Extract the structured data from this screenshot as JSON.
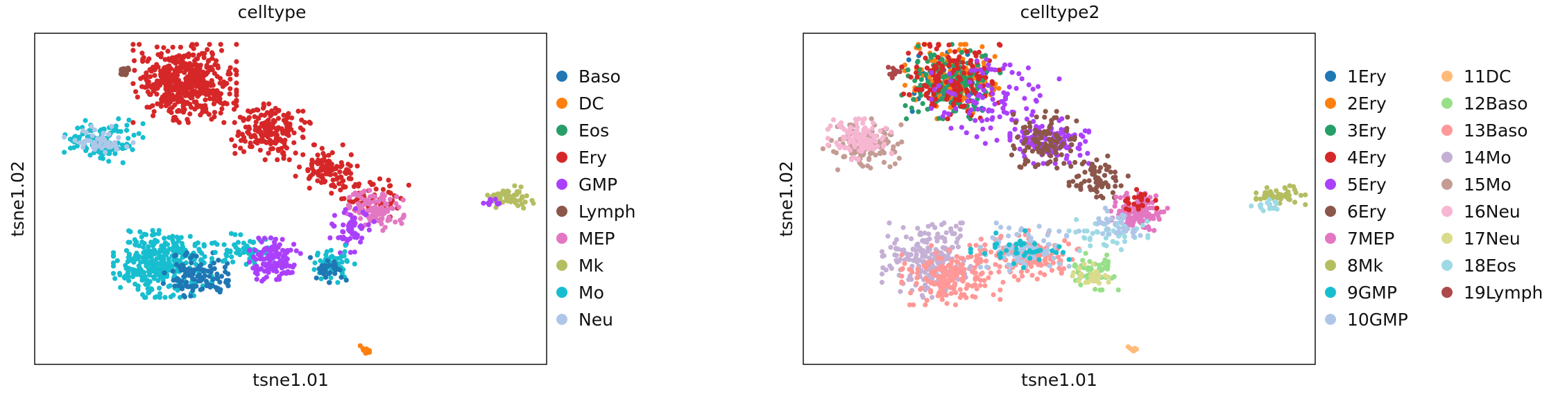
{
  "chart_data": [
    {
      "type": "scatter",
      "title": "celltype",
      "xlabel": "tsne1.01",
      "ylabel": "tsne1.02",
      "xlim": [
        -48,
        56
      ],
      "ylim": [
        -44,
        45
      ],
      "grid": false,
      "ticks": false,
      "legend_position": "right",
      "legend_columns": 1,
      "series": [
        {
          "name": "Baso",
          "color": "#1f77b4"
        },
        {
          "name": "DC",
          "color": "#ff7f0e"
        },
        {
          "name": "Eos",
          "color": "#279e68"
        },
        {
          "name": "Ery",
          "color": "#d62728"
        },
        {
          "name": "GMP",
          "color": "#aa40fc"
        },
        {
          "name": "Lymph",
          "color": "#8c564b"
        },
        {
          "name": "MEP",
          "color": "#e377c2"
        },
        {
          "name": "Mk",
          "color": "#b5bd61"
        },
        {
          "name": "Mo",
          "color": "#17becf"
        },
        {
          "name": "Neu",
          "color": "#aec7e8"
        }
      ],
      "clusters": [
        {
          "series": "Ery",
          "x": [
            -28,
            -7
          ],
          "y": [
            21,
            42
          ],
          "n": 520
        },
        {
          "series": "Ery",
          "x": [
            -8,
            8
          ],
          "y": [
            11,
            26
          ],
          "n": 180
        },
        {
          "series": "Ery",
          "x": [
            5,
            18
          ],
          "y": [
            2,
            15
          ],
          "n": 110
        },
        {
          "series": "Ery",
          "x": [
            14,
            28
          ],
          "y": [
            -5,
            6
          ],
          "n": 60
        },
        {
          "series": "MEP",
          "x": [
            15,
            27
          ],
          "y": [
            -8,
            3
          ],
          "n": 130
        },
        {
          "series": "Mo",
          "x": [
            -42,
            -26
          ],
          "y": [
            10,
            22
          ],
          "n": 120
        },
        {
          "series": "Neu",
          "x": [
            -42,
            -28
          ],
          "y": [
            12,
            20
          ],
          "n": 50
        },
        {
          "series": "Mo",
          "x": [
            -32,
            -12
          ],
          "y": [
            -26,
            -8
          ],
          "n": 340
        },
        {
          "series": "Baso",
          "x": [
            -22,
            -8
          ],
          "y": [
            -26,
            -14
          ],
          "n": 110
        },
        {
          "series": "Mo",
          "x": [
            -12,
            0
          ],
          "y": [
            -18,
            -8
          ],
          "n": 60
        },
        {
          "series": "GMP",
          "x": [
            -5,
            6
          ],
          "y": [
            -22,
            -10
          ],
          "n": 120
        },
        {
          "series": "GMP",
          "x": [
            12,
            21
          ],
          "y": [
            -14,
            -2
          ],
          "n": 60
        },
        {
          "series": "Mo",
          "x": [
            8,
            17
          ],
          "y": [
            -22,
            -12
          ],
          "n": 50
        },
        {
          "series": "Baso",
          "x": [
            8,
            16
          ],
          "y": [
            -22,
            -15
          ],
          "n": 30
        },
        {
          "series": "Mk",
          "x": [
            43,
            54
          ],
          "y": [
            -2,
            4
          ],
          "n": 60
        },
        {
          "series": "GMP",
          "x": [
            43,
            47
          ],
          "y": [
            -2,
            1
          ],
          "n": 10
        },
        {
          "series": "Lymph",
          "x": [
            -31,
            -28
          ],
          "y": [
            33,
            36
          ],
          "n": 15
        },
        {
          "series": "DC",
          "x": [
            18,
            20
          ],
          "y": [
            -41,
            -39
          ],
          "n": 12
        }
      ]
    },
    {
      "type": "scatter",
      "title": "celltype2",
      "xlabel": "tsne1.01",
      "ylabel": "tsne1.02",
      "xlim": [
        -48,
        56
      ],
      "ylim": [
        -44,
        45
      ],
      "grid": false,
      "ticks": false,
      "legend_position": "right",
      "legend_columns": 2,
      "series": [
        {
          "name": "1Ery",
          "color": "#1f77b4"
        },
        {
          "name": "2Ery",
          "color": "#ff7f0e"
        },
        {
          "name": "3Ery",
          "color": "#279e68"
        },
        {
          "name": "4Ery",
          "color": "#d62728"
        },
        {
          "name": "5Ery",
          "color": "#aa40fc"
        },
        {
          "name": "6Ery",
          "color": "#8c564b"
        },
        {
          "name": "7MEP",
          "color": "#e377c2"
        },
        {
          "name": "8Mk",
          "color": "#b5bd61"
        },
        {
          "name": "9GMP",
          "color": "#17becf"
        },
        {
          "name": "10GMP",
          "color": "#aec7e8"
        },
        {
          "name": "11DC",
          "color": "#ffbb78"
        },
        {
          "name": "12Baso",
          "color": "#98df8a"
        },
        {
          "name": "13Baso",
          "color": "#ff9896"
        },
        {
          "name": "14Mo",
          "color": "#c5b0d5"
        },
        {
          "name": "15Mo",
          "color": "#c49c94"
        },
        {
          "name": "16Neu",
          "color": "#f7b6d2"
        },
        {
          "name": "17Neu",
          "color": "#dbdb8d"
        },
        {
          "name": "18Eos",
          "color": "#9edae5"
        },
        {
          "name": "19Lymph",
          "color": "#ad494a"
        }
      ],
      "clusters": [
        {
          "series": "1Ery",
          "x": [
            -28,
            -8
          ],
          "y": [
            24,
            42
          ],
          "n": 60
        },
        {
          "series": "2Ery",
          "x": [
            -28,
            -8
          ],
          "y": [
            22,
            42
          ],
          "n": 150
        },
        {
          "series": "3Ery",
          "x": [
            -28,
            -8
          ],
          "y": [
            22,
            42
          ],
          "n": 150
        },
        {
          "series": "4Ery",
          "x": [
            -28,
            -8
          ],
          "y": [
            22,
            42
          ],
          "n": 150
        },
        {
          "series": "5Ery",
          "x": [
            -22,
            4
          ],
          "y": [
            14,
            40
          ],
          "n": 100
        },
        {
          "series": "5Ery",
          "x": [
            -6,
            10
          ],
          "y": [
            10,
            22
          ],
          "n": 120
        },
        {
          "series": "6Ery",
          "x": [
            -6,
            8
          ],
          "y": [
            8,
            24
          ],
          "n": 110
        },
        {
          "series": "6Ery",
          "x": [
            6,
            18
          ],
          "y": [
            0,
            12
          ],
          "n": 70
        },
        {
          "series": "7MEP",
          "x": [
            14,
            26
          ],
          "y": [
            -8,
            2
          ],
          "n": 140
        },
        {
          "series": "4Ery",
          "x": [
            16,
            24
          ],
          "y": [
            -5,
            3
          ],
          "n": 20
        },
        {
          "series": "8Mk",
          "x": [
            44,
            54
          ],
          "y": [
            -2,
            4
          ],
          "n": 50
        },
        {
          "series": "18Eos",
          "x": [
            43,
            49
          ],
          "y": [
            -3,
            1
          ],
          "n": 15
        },
        {
          "series": "15Mo",
          "x": [
            -44,
            -28
          ],
          "y": [
            8,
            22
          ],
          "n": 120
        },
        {
          "series": "16Neu",
          "x": [
            -43,
            -30
          ],
          "y": [
            11,
            22
          ],
          "n": 110
        },
        {
          "series": "14Mo",
          "x": [
            -32,
            -14
          ],
          "y": [
            -26,
            -6
          ],
          "n": 230
        },
        {
          "series": "13Baso",
          "x": [
            -28,
            -8
          ],
          "y": [
            -28,
            -12
          ],
          "n": 180
        },
        {
          "series": "13Baso",
          "x": [
            -12,
            8
          ],
          "y": [
            -22,
            -8
          ],
          "n": 130
        },
        {
          "series": "10GMP",
          "x": [
            -12,
            8
          ],
          "y": [
            -20,
            -6
          ],
          "n": 80
        },
        {
          "series": "9GMP",
          "x": [
            -14,
            6
          ],
          "y": [
            -18,
            -8
          ],
          "n": 40
        },
        {
          "series": "18Eos",
          "x": [
            6,
            22
          ],
          "y": [
            -14,
            -4
          ],
          "n": 50
        },
        {
          "series": "12Baso",
          "x": [
            6,
            16
          ],
          "y": [
            -24,
            -14
          ],
          "n": 50
        },
        {
          "series": "17Neu",
          "x": [
            6,
            14
          ],
          "y": [
            -24,
            -17
          ],
          "n": 30
        },
        {
          "series": "10GMP",
          "x": [
            10,
            22
          ],
          "y": [
            -12,
            -2
          ],
          "n": 30
        },
        {
          "series": "19Lymph",
          "x": [
            -31,
            -28
          ],
          "y": [
            33,
            36
          ],
          "n": 15
        },
        {
          "series": "11DC",
          "x": [
            18,
            20
          ],
          "y": [
            -41,
            -39
          ],
          "n": 12
        }
      ]
    }
  ]
}
